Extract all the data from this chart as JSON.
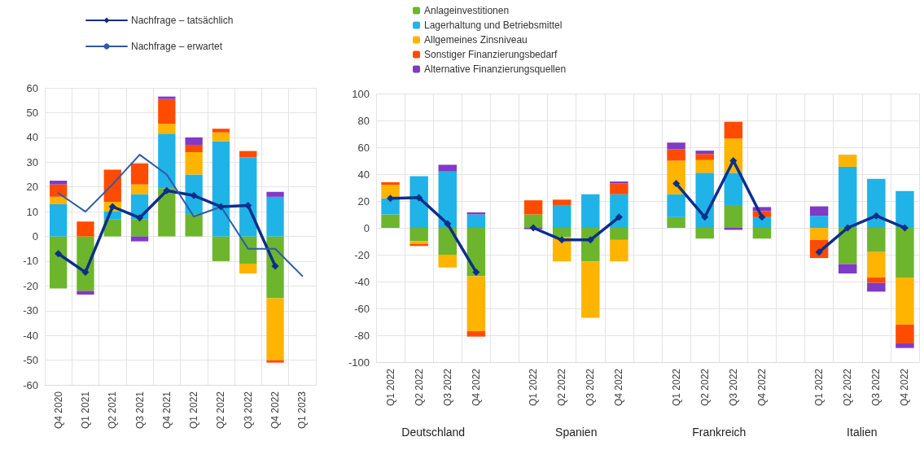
{
  "chart_data": [
    {
      "type": "bar",
      "stacked": true,
      "grid": true,
      "legend": "top left",
      "line_style": "solid",
      "categories": [
        "Q4 2020",
        "Q1 2021",
        "Q2 2021",
        "Q3 2021",
        "Q4 2021",
        "Q1 2022",
        "Q2 2022",
        "Q3 2022",
        "Q4 2022",
        "Q1 2023"
      ],
      "ylim": [
        -60,
        60
      ],
      "yticks": [
        -60,
        -50,
        -40,
        -30,
        -20,
        -10,
        0,
        10,
        20,
        30,
        40,
        50,
        60
      ],
      "series": [
        {
          "color": "#6cb52d",
          "values": [
            -21,
            -22,
            7,
            7,
            19.5,
            9,
            -10,
            -11,
            -25,
            null
          ]
        },
        {
          "color": "#1fb3e8",
          "values": [
            13,
            null,
            3,
            10,
            22,
            16,
            38.5,
            32,
            16,
            null
          ]
        },
        {
          "color": "#ffb400",
          "values": [
            3,
            null,
            4,
            4,
            4,
            9,
            3.5,
            -4,
            -25,
            null
          ]
        },
        {
          "color": "#ff4b00",
          "values": [
            5,
            6,
            13,
            8.5,
            10,
            3,
            1.5,
            2.5,
            -1,
            null
          ]
        },
        {
          "color": "#8139c6",
          "values": [
            1.5,
            -1.5,
            null,
            -2,
            1,
            3,
            null,
            null,
            2,
            null
          ]
        },
        {
          "name": "Nachfrage – tatsächlich",
          "type": "line",
          "marker": "diamond",
          "color": "#0b2f8a",
          "values": [
            -7,
            -14.5,
            12,
            7.5,
            18.5,
            16.5,
            12,
            12.5,
            -12,
            null
          ]
        },
        {
          "name": "Nachfrage – erwartet",
          "type": "line",
          "marker": "none",
          "color": "#2e5aa8",
          "values": [
            17.5,
            10,
            21,
            33,
            25,
            8,
            12,
            -5,
            -5,
            -16
          ]
        }
      ]
    },
    {
      "type": "bar",
      "stacked": true,
      "grid": true,
      "legend": "top",
      "line_style": "solid",
      "categories": [
        "Q1 2022",
        "Q2 2022",
        "Q3 2022",
        "Q4 2022",
        null,
        "Q1 2022",
        "Q2 2022",
        "Q3 2022",
        "Q4 2022",
        null,
        "Q1 2022",
        "Q2 2022",
        "Q3 2022",
        "Q4 2022",
        null,
        "Q1 2022",
        "Q2 2022",
        "Q3 2022",
        "Q4 2022"
      ],
      "ylim": [
        -100,
        100
      ],
      "yticks": [
        -100,
        -80,
        -60,
        -40,
        -20,
        0,
        20,
        40,
        60,
        80,
        100
      ],
      "annotations": [
        "Deutschland",
        "Spanien",
        "Frankreich",
        "Italien"
      ],
      "series": [
        {
          "name": "Anlageinvestitionen",
          "color": "#6cb52d",
          "values": [
            10,
            -10,
            -20,
            -36,
            null,
            10,
            -7,
            -25,
            -9,
            null,
            8,
            -8,
            17,
            -8,
            null,
            null,
            -27,
            -18,
            -37
          ]
        },
        {
          "name": "Lagerhaltung und Betriebsmittel",
          "color": "#1fb3e8",
          "values": [
            12,
            38.5,
            42,
            10,
            null,
            null,
            17,
            25,
            25,
            null,
            17,
            41,
            24,
            8,
            null,
            9,
            45.5,
            36.5,
            27.5
          ]
        },
        {
          "name": "Allgemeines Zinsniveau",
          "color": "#ffb400",
          "values": [
            10,
            -2,
            -9.5,
            -41,
            null,
            null,
            -18,
            -42,
            -16,
            null,
            25,
            9.5,
            25.5,
            null,
            null,
            -9,
            9,
            -19,
            -35
          ]
        },
        {
          "name": "Sonstiger Finanzierungsbedarf",
          "color": "#ff4b00",
          "values": [
            2,
            -1.5,
            null,
            -4,
            null,
            10.5,
            4,
            null,
            8,
            null,
            8.5,
            4.5,
            12.5,
            4.5,
            null,
            -13.5,
            null,
            -4,
            -14
          ]
        },
        {
          "name": "Alternative Finanzierungsquellen",
          "color": "#8139c6",
          "values": [
            null,
            null,
            5,
            1.5,
            null,
            -1,
            null,
            null,
            1.5,
            null,
            5,
            2.5,
            -1.5,
            3,
            null,
            7,
            -7,
            -6.5,
            -3.5
          ]
        },
        {
          "type": "line",
          "marker": "diamond",
          "color": "#0b2f8a",
          "values": [
            22,
            22.5,
            3,
            -33,
            null,
            0,
            -9,
            -9,
            8,
            null,
            33,
            8,
            50,
            8,
            null,
            -18,
            0,
            9,
            0
          ]
        }
      ]
    }
  ]
}
